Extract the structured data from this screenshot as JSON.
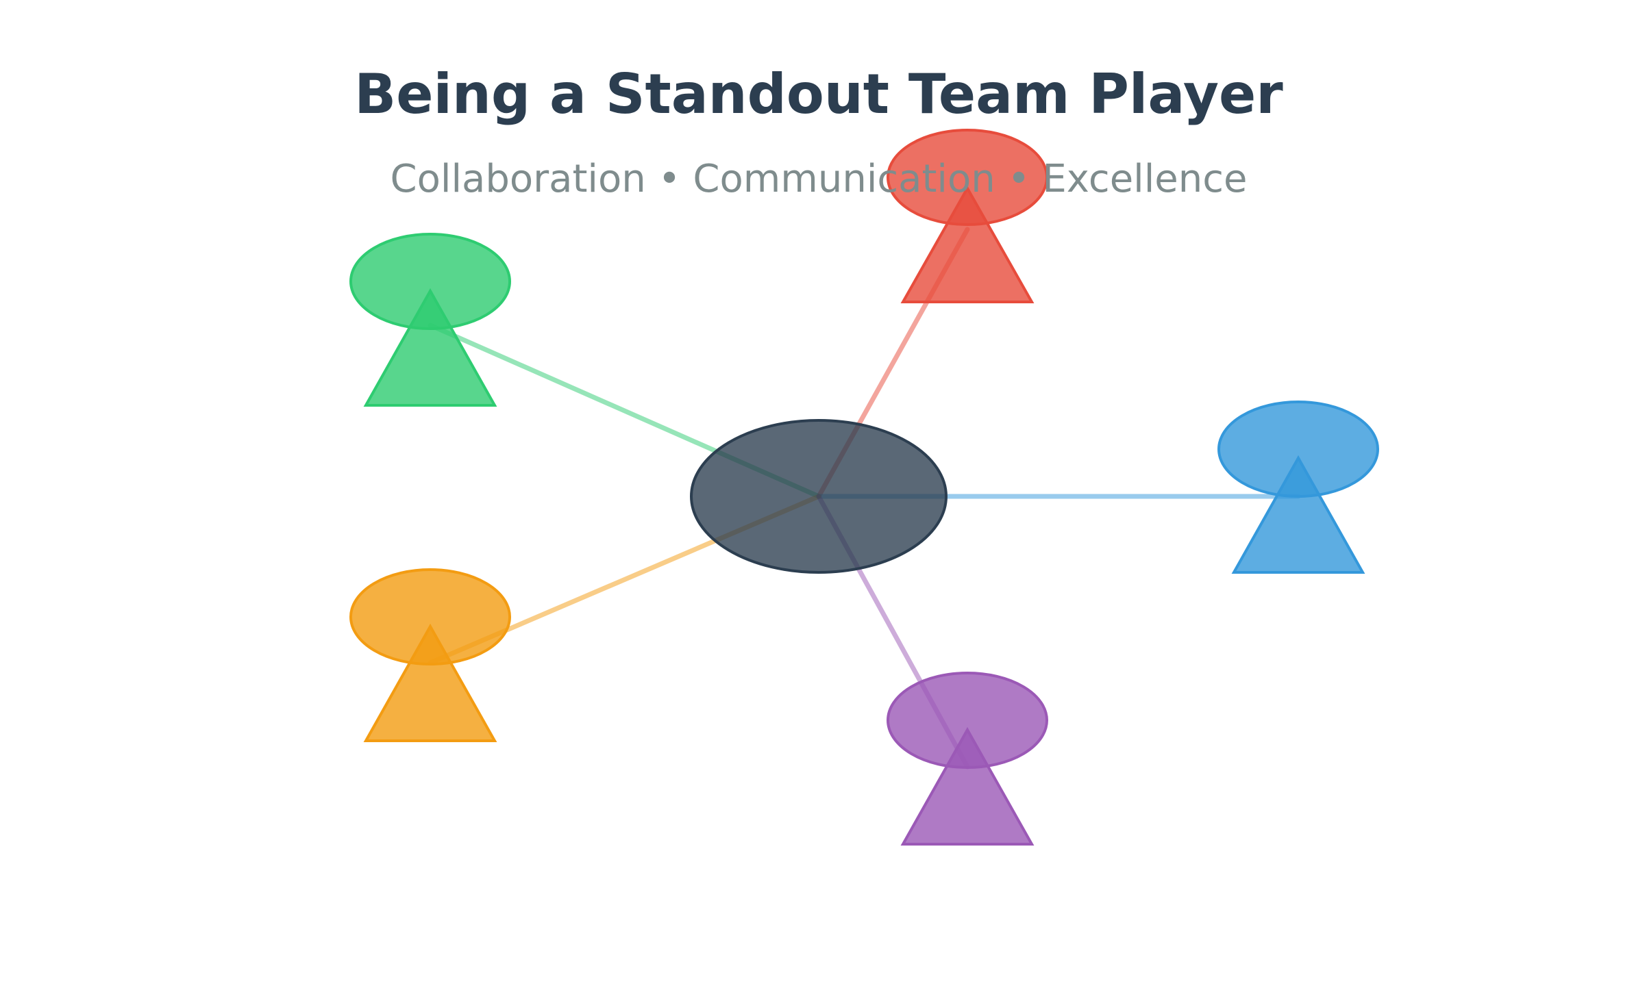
{
  "title": "Being a Standout Team Player",
  "subtitle": "Collaboration • Communication • Excellence",
  "colors": {
    "title": "#2c3e50",
    "subtitle": "#7f8c8d",
    "center": "#2c3e50",
    "background": "#ffffff"
  },
  "center_node": {
    "name": "center-hub",
    "color": "#2c3e50"
  },
  "team_members": [
    {
      "name": "team-member-red",
      "color": "#e74c3c"
    },
    {
      "name": "team-member-green",
      "color": "#2ecc71"
    },
    {
      "name": "team-member-blue",
      "color": "#3498db"
    },
    {
      "name": "team-member-orange",
      "color": "#f39c12"
    },
    {
      "name": "team-member-purple",
      "color": "#9b59b6"
    }
  ]
}
